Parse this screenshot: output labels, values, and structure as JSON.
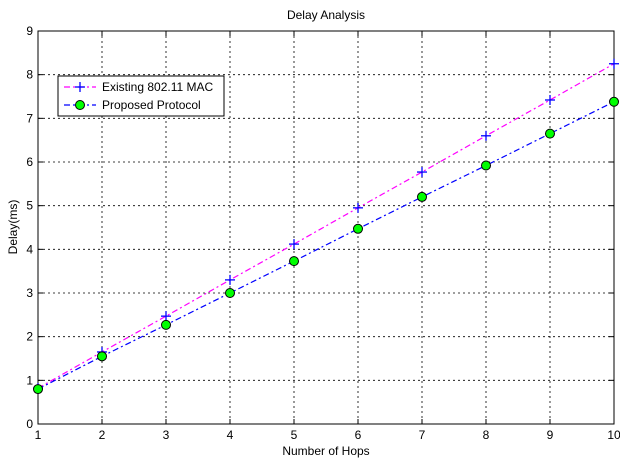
{
  "chart_data": {
    "type": "line",
    "title": "Delay Analysis",
    "xlabel": "Number of Hops",
    "ylabel": "Delay(ms)",
    "xlim": [
      1,
      10
    ],
    "ylim": [
      0,
      9
    ],
    "x_ticks": [
      1,
      2,
      3,
      4,
      5,
      6,
      7,
      8,
      9,
      10
    ],
    "y_ticks": [
      0,
      1,
      2,
      3,
      4,
      5,
      6,
      7,
      8,
      9
    ],
    "grid": true,
    "legend_position": "top-left",
    "x": [
      1,
      2,
      3,
      4,
      5,
      6,
      7,
      8,
      9,
      10
    ],
    "series": [
      {
        "name": "Existing 802.11 MAC",
        "values": [
          0.82,
          1.65,
          2.47,
          3.3,
          4.12,
          4.95,
          5.77,
          6.6,
          7.42,
          8.25
        ],
        "line_color": "#ff00ff",
        "marker_color": "#0000ff",
        "marker": "plus",
        "line_style": "dash-dot"
      },
      {
        "name": "Proposed Protocol",
        "values": [
          0.8,
          1.55,
          2.27,
          3.0,
          3.73,
          4.47,
          5.2,
          5.92,
          6.65,
          7.38
        ],
        "line_color": "#0000ff",
        "marker_color": "#00ff00",
        "marker": "circle",
        "line_style": "dash-dot"
      }
    ]
  }
}
